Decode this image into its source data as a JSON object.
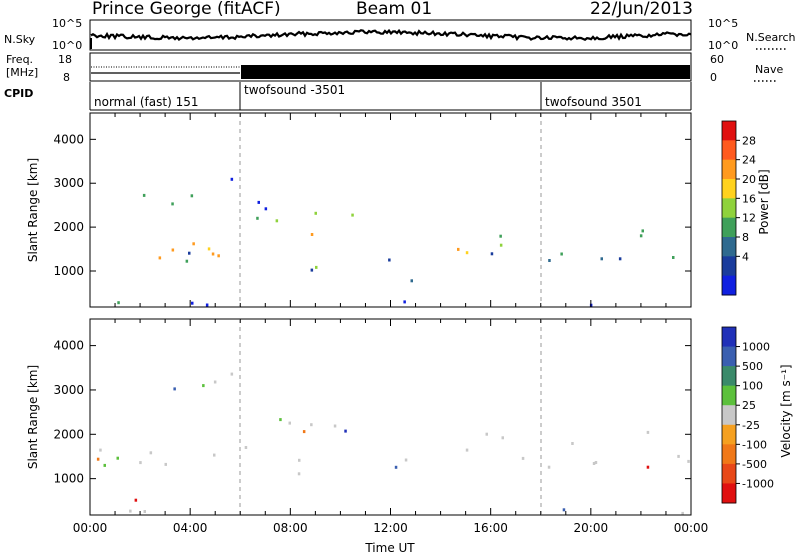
{
  "header": {
    "station": "Prince George (fitACF)",
    "beam": "Beam 01",
    "date": "22/Jun/2013"
  },
  "strip_labels": {
    "nsky": "N.Sky",
    "nsearch": "N.Search",
    "nsky_ticks": [
      "10^5",
      "10^0"
    ],
    "nsearch_ticks": [
      "10^5",
      "10^0"
    ],
    "freq_line1": "Freq.",
    "freq_line2": "[MHz]",
    "freq_ticks": [
      "18",
      "8"
    ],
    "nave": "Nave",
    "nave_ticks": [
      "60",
      "0"
    ],
    "cpid": "CPID"
  },
  "cpid_segments": [
    {
      "label": "normal (fast) 151",
      "start_hour": 0,
      "end_hour": 6
    },
    {
      "label": "twofsound -3501",
      "start_hour": 6,
      "end_hour": 18
    },
    {
      "label": "twofsound 3501",
      "start_hour": 18,
      "end_hour": 24
    }
  ],
  "chart_data": [
    {
      "type": "heatmap",
      "name": "power",
      "ylabel": "Slant Range [km]",
      "xlabel": "",
      "xlim": [
        0,
        24
      ],
      "ylim": [
        180,
        4600
      ],
      "yticks": [
        1000,
        2000,
        3000,
        4000
      ],
      "colorbar": {
        "label": "Power [dB]",
        "ticks": [
          "28",
          "24",
          "20",
          "16",
          "12",
          "8",
          "4"
        ],
        "colors": [
          "#e01010",
          "#ff5a1e",
          "#ff9a1e",
          "#ffd21e",
          "#8fd23c",
          "#3fa05a",
          "#2f6a8f",
          "#1a3c9c",
          "#1020e0"
        ]
      }
    },
    {
      "type": "heatmap",
      "name": "velocity",
      "ylabel": "Slant Range [km]",
      "xlabel": "Time UT",
      "xlim": [
        0,
        24
      ],
      "ylim": [
        180,
        4600
      ],
      "yticks": [
        1000,
        2000,
        3000,
        4000
      ],
      "xticks": [
        "00:00",
        "04:00",
        "08:00",
        "12:00",
        "16:00",
        "20:00",
        "00:00"
      ],
      "colorbar": {
        "label": "Velocity [m s⁻¹]",
        "ticks": [
          "1000",
          "500",
          "100",
          "25",
          "-25",
          "-100",
          "-500",
          "-1000"
        ],
        "colors": [
          "#2030b8",
          "#3a5fb0",
          "#3a8a6a",
          "#5cc03c",
          "#c8c8c8",
          "#f5a020",
          "#f07818",
          "#e84818",
          "#e01010"
        ]
      }
    }
  ],
  "icons": {
    "nsearch_marker": "dotted-line-icon",
    "nave_marker": "dotted-line-icon"
  }
}
